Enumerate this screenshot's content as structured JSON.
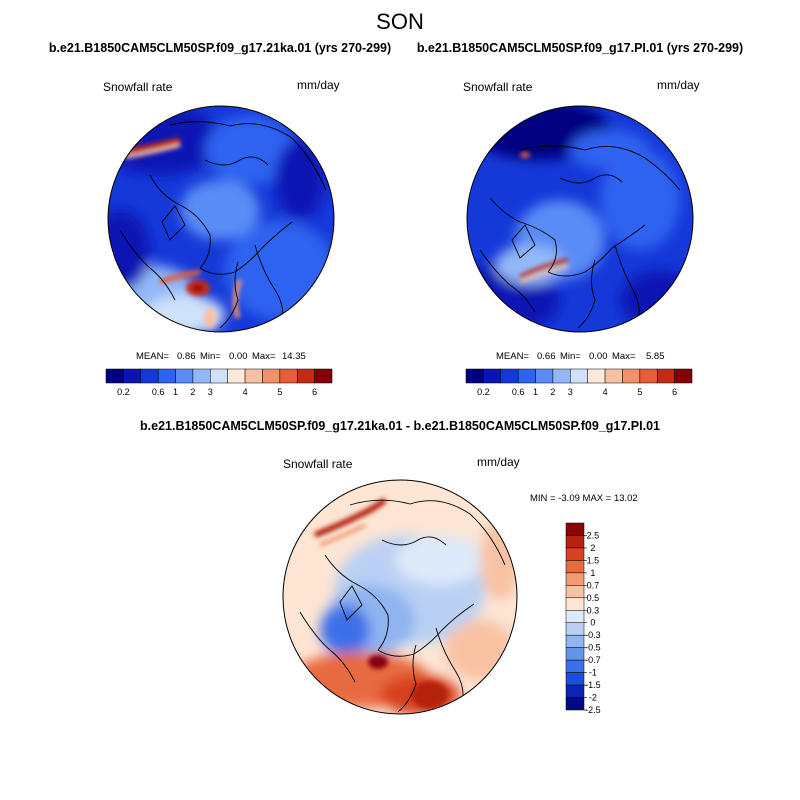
{
  "title": "SON",
  "colors": {
    "seq": [
      "#000080",
      "#0a16b4",
      "#1539d9",
      "#2e62f0",
      "#5a8cf5",
      "#93b8f7",
      "#cfe2fa",
      "#fde9dc",
      "#f8c0a2",
      "#f0916a",
      "#e45c38",
      "#c42a14",
      "#830008"
    ],
    "diff": [
      "#020b80",
      "#0a24b7",
      "#1b4fd8",
      "#3c70e8",
      "#6394ec",
      "#8fb4f0",
      "#b9d0f4",
      "#ddeaf9",
      "#fde5d4",
      "#f9c2a3",
      "#f29a72",
      "#e86a3f",
      "#d8411e",
      "#b42210",
      "#880508"
    ]
  },
  "panels": [
    {
      "header": "b.e21.B1850CAM5CLM50SP.f09_g17.21ka.01 (yrs 270-299)",
      "variable": "Snowfall rate",
      "units": "mm/day",
      "stats": {
        "mean_label": "MEAN=",
        "mean": "0.86",
        "min_label": "Min=",
        "min": "0.00",
        "max_label": "Max=",
        "max": "14.35"
      },
      "colorbar_ticks": [
        "0.2",
        "0.6",
        "1",
        "2",
        "3",
        "4",
        "5",
        "6"
      ]
    },
    {
      "header": "b.e21.B1850CAM5CLM50SP.f09_g17.PI.01 (yrs 270-299)",
      "variable": "Snowfall rate",
      "units": "mm/day",
      "stats": {
        "mean_label": "MEAN=",
        "mean": "0.66",
        "min_label": "Min=",
        "min": "0.00",
        "max_label": "Max=",
        "max": "5.85"
      },
      "colorbar_ticks": [
        "0.2",
        "0.6",
        "1",
        "2",
        "3",
        "4",
        "5",
        "6"
      ]
    },
    {
      "header": "b.e21.B1850CAM5CLM50SP.f09_g17.21ka.01 - b.e21.B1850CAM5CLM50SP.f09_g17.PI.01",
      "variable": "Snowfall rate",
      "units": "mm/day",
      "stats_line": "MIN = -3.09 MAX = 13.02",
      "colorbar_ticks": [
        "2.5",
        "2",
        "1.5",
        "1",
        "0.7",
        "0.5",
        "0.3",
        "0",
        "-0.3",
        "-0.5",
        "-0.7",
        "-1",
        "-1.5",
        "-2",
        "-2.5"
      ]
    }
  ]
}
